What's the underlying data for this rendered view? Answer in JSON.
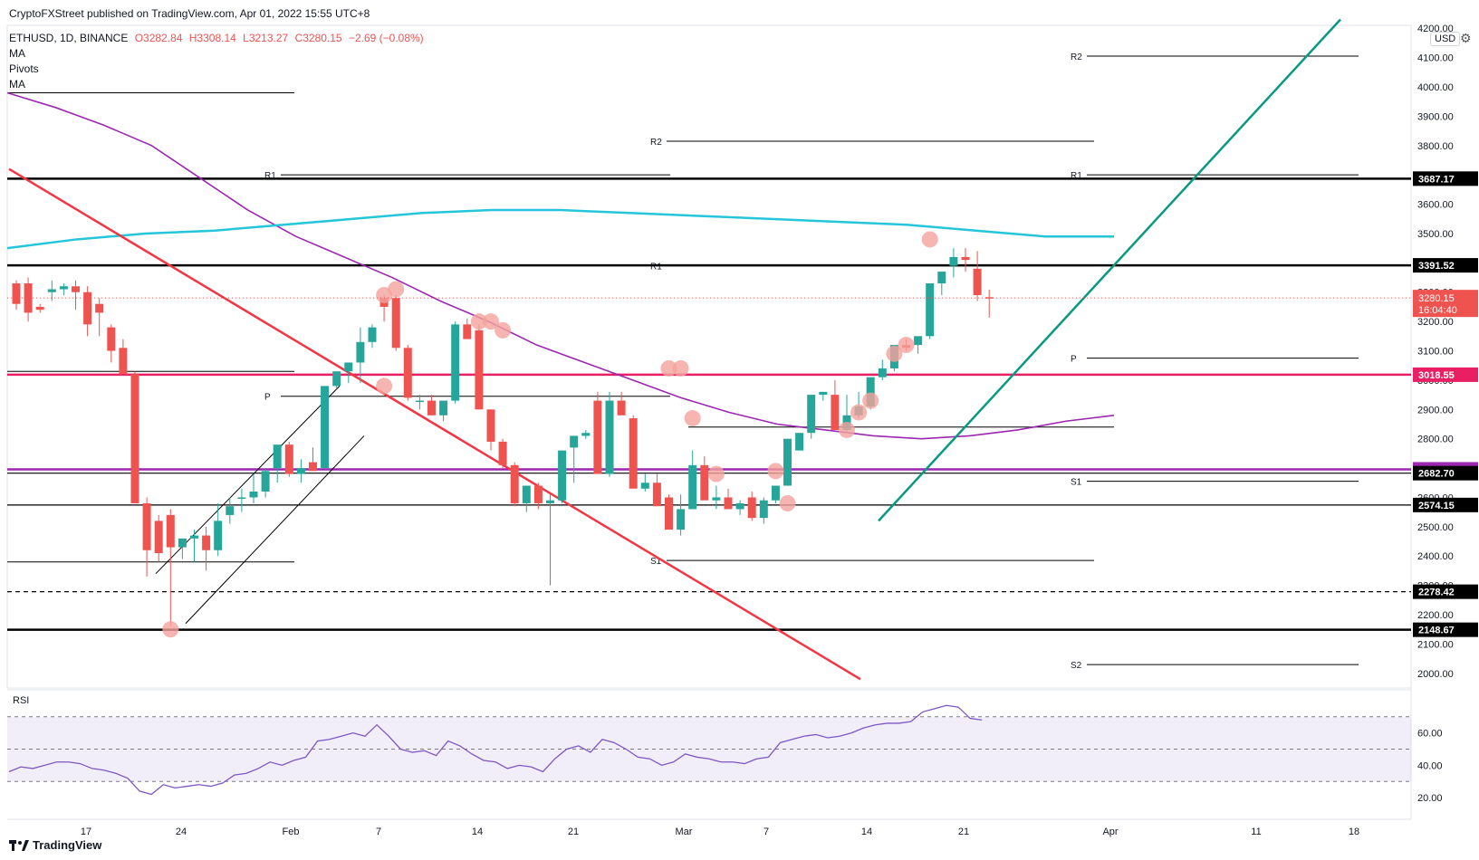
{
  "publisher_line": "CryptoFXStreet published on TradingView.com, Apr 01, 2022 15:55 UTC+8",
  "footer_brand": "TradingView",
  "currency_button": "USD",
  "legend": {
    "symbol": "ETHUSD, 1D, BINANCE",
    "open": "O3282.84",
    "high": "H3308.14",
    "low": "L3213.27",
    "close": "C3280.15",
    "change": "−2.69 (−0.08%)",
    "indicators": [
      "MA",
      "Pivots",
      "MA"
    ]
  },
  "colors": {
    "up": "#26a69a",
    "down": "#ef5350",
    "ma_purple": "#9c27b0",
    "ma_cyan": "#26c6da",
    "pink_level": "#e91e63",
    "trend_red": "#f23645",
    "trend_green": "#089981",
    "rsi_line": "#7e57c2",
    "highlight_circle": "#f4a29c"
  },
  "chart_data": {
    "type": "candlestick",
    "title": "",
    "xlabel": "",
    "ylabel": "",
    "ylim": [
      1950,
      4210
    ],
    "grid": false,
    "x_ticks": [
      "17",
      "24",
      "Feb",
      "7",
      "14",
      "21",
      "Mar",
      "7",
      "14",
      "21",
      "Apr",
      "11",
      "18"
    ],
    "y_ticks": [
      "4200.00",
      "4100.00",
      "4000.00",
      "3900.00",
      "3800.00",
      "3700.00",
      "3600.00",
      "3500.00",
      "3400.00",
      "3300.00",
      "3200.00",
      "3100.00",
      "3000.00",
      "2900.00",
      "2800.00",
      "2700.00",
      "2600.00",
      "2500.00",
      "2400.00",
      "2300.00",
      "2200.00",
      "2100.00",
      "2000.00"
    ],
    "candles_ohlc": [
      [
        3330,
        3340,
        3240,
        3260
      ],
      [
        3330,
        3350,
        3200,
        3230
      ],
      [
        3250,
        3260,
        3230,
        3240
      ],
      [
        3300,
        3340,
        3270,
        3310
      ],
      [
        3310,
        3330,
        3290,
        3320
      ],
      [
        3320,
        3340,
        3240,
        3300
      ],
      [
        3300,
        3320,
        3150,
        3190
      ],
      [
        3260,
        3280,
        3150,
        3230
      ],
      [
        3180,
        3190,
        3060,
        3100
      ],
      [
        3110,
        3140,
        3050,
        3020
      ],
      [
        3020,
        3030,
        2580,
        2580
      ],
      [
        2580,
        2600,
        2330,
        2420
      ],
      [
        2520,
        2540,
        2380,
        2410
      ],
      [
        2540,
        2560,
        2160,
        2430
      ],
      [
        2430,
        2450,
        2390,
        2460
      ],
      [
        2460,
        2490,
        2380,
        2470
      ],
      [
        2470,
        2500,
        2350,
        2420
      ],
      [
        2420,
        2580,
        2400,
        2520
      ],
      [
        2540,
        2600,
        2510,
        2570
      ],
      [
        2600,
        2630,
        2550,
        2600
      ],
      [
        2600,
        2680,
        2580,
        2620
      ],
      [
        2620,
        2700,
        2600,
        2690
      ],
      [
        2700,
        2770,
        2650,
        2780
      ],
      [
        2780,
        2790,
        2670,
        2680
      ],
      [
        2680,
        2730,
        2650,
        2700
      ],
      [
        2720,
        2770,
        2690,
        2690
      ],
      [
        2700,
        2960,
        2700,
        2980
      ],
      [
        2980,
        3000,
        2970,
        3030
      ],
      [
        3030,
        3050,
        2990,
        3060
      ],
      [
        3060,
        3180,
        2990,
        3130
      ],
      [
        3130,
        3190,
        3110,
        3180
      ],
      [
        3280,
        3290,
        3200,
        3250
      ],
      [
        3280,
        3290,
        3100,
        3110
      ],
      [
        3110,
        3120,
        2930,
        2940
      ],
      [
        2930,
        2950,
        2900,
        2930
      ],
      [
        2930,
        2950,
        2900,
        2880
      ],
      [
        2880,
        2910,
        2860,
        2930
      ],
      [
        2930,
        3200,
        2920,
        3190
      ],
      [
        3190,
        3210,
        3150,
        3140
      ],
      [
        3170,
        3190,
        2900,
        2900
      ],
      [
        2900,
        2900,
        2760,
        2790
      ],
      [
        2790,
        2800,
        2700,
        2710
      ],
      [
        2710,
        2720,
        2570,
        2580
      ],
      [
        2580,
        2640,
        2550,
        2640
      ],
      [
        2640,
        2650,
        2560,
        2580
      ],
      [
        2580,
        2610,
        2300,
        2590
      ],
      [
        2590,
        2760,
        2580,
        2760
      ],
      [
        2770,
        2800,
        2650,
        2810
      ],
      [
        2810,
        2830,
        2800,
        2820
      ],
      [
        2930,
        2960,
        2810,
        2680
      ],
      [
        2680,
        2960,
        2670,
        2930
      ],
      [
        2930,
        2960,
        2880,
        2880
      ],
      [
        2870,
        2880,
        2720,
        2630
      ],
      [
        2630,
        2680,
        2620,
        2650
      ],
      [
        2650,
        2680,
        2570,
        2570
      ],
      [
        2600,
        2610,
        2560,
        2490
      ],
      [
        2490,
        2610,
        2470,
        2560
      ],
      [
        2560,
        2760,
        2640,
        2710
      ],
      [
        2710,
        2740,
        2600,
        2590
      ],
      [
        2590,
        2640,
        2560,
        2600
      ],
      [
        2600,
        2630,
        2560,
        2560
      ],
      [
        2560,
        2590,
        2540,
        2580
      ],
      [
        2600,
        2620,
        2520,
        2530
      ],
      [
        2530,
        2600,
        2510,
        2590
      ],
      [
        2590,
        2640,
        2580,
        2640
      ],
      [
        2640,
        2800,
        2640,
        2800
      ],
      [
        2760,
        2810,
        2760,
        2820
      ],
      [
        2820,
        2950,
        2800,
        2950
      ],
      [
        2950,
        2960,
        2930,
        2960
      ],
      [
        2950,
        3000,
        2930,
        2830
      ],
      [
        2830,
        2950,
        2820,
        2880
      ],
      [
        2880,
        2960,
        2870,
        2910
      ],
      [
        2910,
        3000,
        2900,
        3010
      ],
      [
        3010,
        3070,
        3000,
        3040
      ],
      [
        3040,
        3110,
        3030,
        3120
      ],
      [
        3120,
        3140,
        3100,
        3110
      ],
      [
        3120,
        3140,
        3090,
        3150
      ],
      [
        3150,
        3320,
        3140,
        3330
      ],
      [
        3330,
        3360,
        3290,
        3370
      ],
      [
        3390,
        3450,
        3350,
        3420
      ],
      [
        3420,
        3450,
        3370,
        3410
      ],
      [
        3380,
        3440,
        3270,
        3290
      ],
      [
        3282.84,
        3308.14,
        3213.27,
        3280.15
      ]
    ],
    "rsi": {
      "label": "RSI",
      "ylim": [
        15,
        85
      ],
      "y_ticks": [
        "60.00",
        "40.00",
        "20.00"
      ],
      "bands": [
        70,
        50,
        30
      ],
      "values": [
        36,
        39,
        38,
        40,
        42,
        42,
        41,
        38,
        37,
        35,
        32,
        24,
        22,
        28,
        26,
        27,
        28,
        27,
        29,
        34,
        35,
        38,
        42,
        40,
        43,
        45,
        55,
        56,
        58,
        60,
        58,
        65,
        58,
        50,
        48,
        49,
        46,
        55,
        52,
        47,
        43,
        42,
        38,
        40,
        39,
        36,
        44,
        50,
        52,
        48,
        56,
        54,
        50,
        45,
        44,
        40,
        42,
        47,
        45,
        44,
        42,
        42,
        41,
        44,
        45,
        54,
        56,
        58,
        59,
        57,
        58,
        60,
        63,
        65,
        66,
        66,
        67,
        73,
        75,
        77,
        76,
        69,
        68
      ]
    },
    "moving_averages": [
      {
        "color_key": "ma_purple",
        "values": [
          3980,
          3930,
          3870,
          3800,
          3690,
          3580,
          3490,
          3420,
          3350,
          3270,
          3200,
          3120,
          3060,
          3000,
          2940,
          2890,
          2850,
          2830,
          2810,
          2800,
          2810,
          2830,
          2860,
          2880
        ]
      },
      {
        "color_key": "ma_cyan",
        "values": [
          3450,
          3480,
          3500,
          3510,
          3530,
          3550,
          3570,
          3580,
          3580,
          3570,
          3560,
          3550,
          3540,
          3530,
          3510,
          3490,
          3490
        ]
      }
    ],
    "horizontal_levels": [
      {
        "price": 3687.17,
        "label": "3687.17",
        "style": "thick",
        "color": "#000000"
      },
      {
        "price": 3391.52,
        "label": "3391.52",
        "style": "thick",
        "color": "#000000"
      },
      {
        "price": 3018.55,
        "label": "3018.55",
        "style": "thick",
        "color": "#e91e63"
      },
      {
        "price": 2695.79,
        "label": "2695.79",
        "style": "thick",
        "color": "#9c27b0"
      },
      {
        "price": 2682.7,
        "label": "2682.70",
        "style": "thin",
        "color": "#000000"
      },
      {
        "price": 2574.15,
        "label": "2574.15",
        "style": "thin",
        "color": "#000000"
      },
      {
        "price": 2278.42,
        "label": "2278.42",
        "style": "dashed",
        "color": "#000000"
      },
      {
        "price": 2148.67,
        "label": "2148.67",
        "style": "thick",
        "color": "#000000"
      }
    ],
    "current_price": {
      "label": "3280.15",
      "countdown": "16:04:40"
    },
    "pivot_labels": [
      "R1",
      "P",
      "R2",
      "R1",
      "S1",
      "R2",
      "R1",
      "P",
      "S1",
      "S2"
    ]
  }
}
